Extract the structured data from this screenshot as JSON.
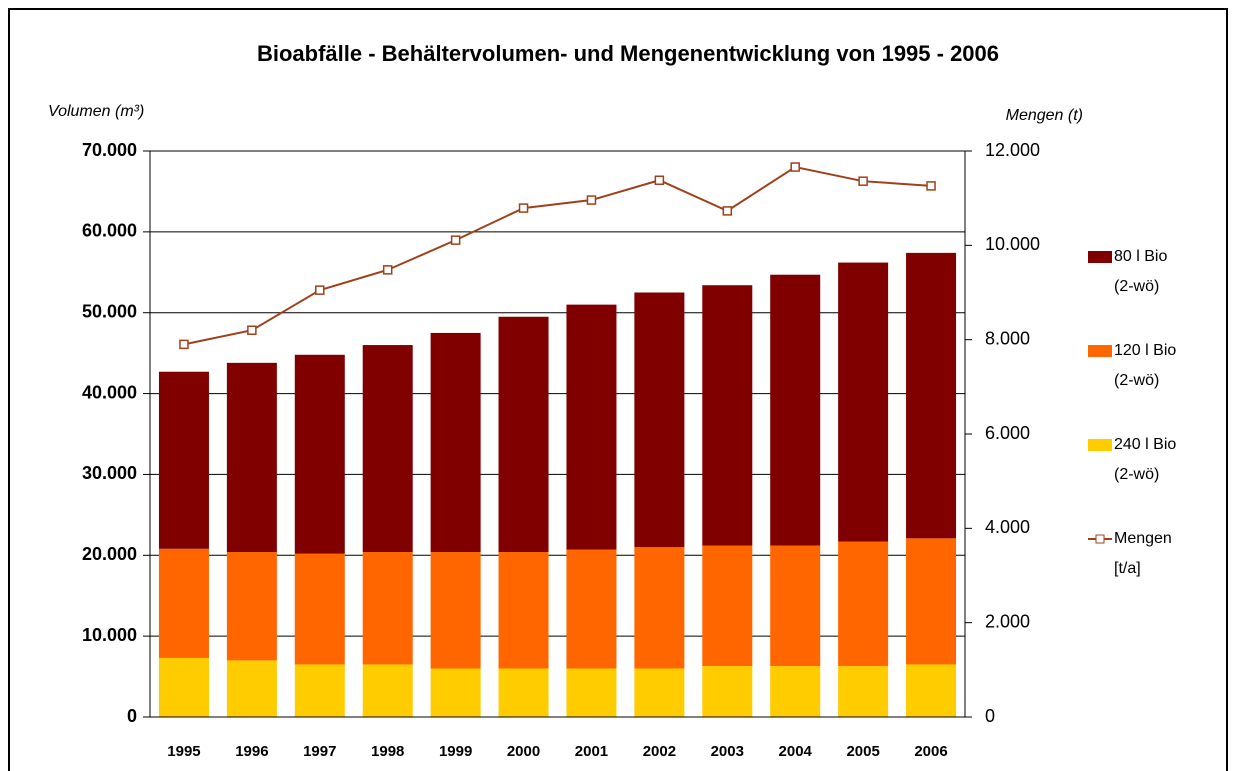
{
  "chart_data": {
    "type": "bar",
    "stacked": true,
    "title": "Bioabfälle - Behältervolumen- und Mengenentwicklung von 1995 - 2006",
    "y_label": "Volumen (m³)",
    "y2_label": "Mengen (t)",
    "categories": [
      "1995",
      "1996",
      "1997",
      "1998",
      "1999",
      "2000",
      "2001",
      "2002",
      "2003",
      "2004",
      "2005",
      "2006"
    ],
    "series": [
      {
        "name": "80 l  Bio (2-wö)",
        "color": "#800000",
        "values": [
          21900,
          23400,
          24600,
          25600,
          27100,
          29100,
          30300,
          31500,
          32200,
          33500,
          34500,
          35300
        ]
      },
      {
        "name": "120 l Bio (2-wö)",
        "color": "#ff6600",
        "values": [
          13500,
          13400,
          13700,
          13900,
          14400,
          14400,
          14700,
          15000,
          14900,
          14900,
          15400,
          15600
        ]
      },
      {
        "name": "240 l Bio (2-wö)",
        "color": "#ffcc00",
        "values": [
          7300,
          7000,
          6500,
          6500,
          6000,
          6000,
          6000,
          6000,
          6300,
          6300,
          6300,
          6500
        ]
      },
      {
        "name": "Mengen [t/a]",
        "color": "#a0401a",
        "type": "line",
        "axis": "y2",
        "values": [
          7900,
          8200,
          9050,
          9480,
          10110,
          10790,
          10960,
          11380,
          10730,
          11660,
          11360,
          11260
        ]
      }
    ],
    "ylim": [
      0,
      70000
    ],
    "yticks": [
      0,
      {
        "value": 10000,
        "label": "10.000"
      },
      {
        "value": 20000,
        "label": "20.000"
      },
      {
        "value": 30000,
        "label": "30.000"
      },
      {
        "value": 40000,
        "label": "40.000"
      },
      {
        "value": 50000,
        "label": "50.000"
      },
      {
        "value": 60000,
        "label": "60.000"
      },
      {
        "value": 70000,
        "label": "70.000"
      }
    ],
    "y2lim": [
      0,
      12000
    ],
    "y2ticks": [
      0,
      {
        "value": 2000,
        "label": "2.000"
      },
      {
        "value": 4000,
        "label": "4.000"
      },
      {
        "value": 6000,
        "label": "6.000"
      },
      {
        "value": 8000,
        "label": "8.000"
      },
      {
        "value": 10000,
        "label": "10.000"
      },
      {
        "value": 12000,
        "label": "12.000"
      }
    ],
    "grid": true,
    "legend": "right"
  }
}
